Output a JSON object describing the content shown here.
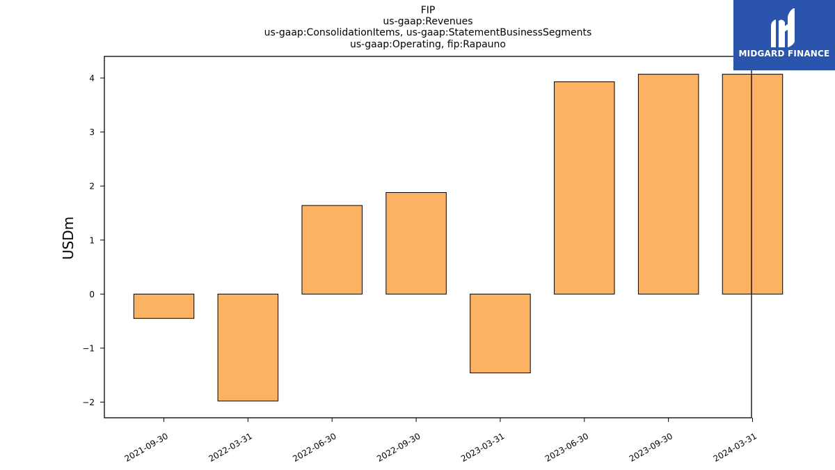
{
  "chart_data": {
    "type": "bar",
    "title_lines": [
      "FIP",
      "us-gaap:Revenues",
      "us-gaap:ConsolidationItems, us-gaap:StatementBusinessSegments",
      "us-gaap:Operating, fip:Rapauno"
    ],
    "ylabel": "USDm",
    "xlabel": "",
    "categories": [
      "2021-09-30",
      "2022-03-31",
      "2022-06-30",
      "2022-09-30",
      "2023-03-31",
      "2023-06-30",
      "2023-09-30",
      "2024-03-31"
    ],
    "values": [
      -0.45,
      -1.98,
      1.64,
      1.88,
      -1.46,
      3.93,
      4.07,
      4.07
    ],
    "ylim": [
      -2.29,
      4.4
    ],
    "yticks": [
      -2,
      -1,
      0,
      1,
      2,
      3,
      4
    ],
    "ytick_labels": [
      "−2",
      "−1",
      "0",
      "1",
      "2",
      "3",
      "4"
    ],
    "grid": false,
    "bar_color": "#fbb363",
    "bar_edge_color": "#000000"
  },
  "logo": {
    "text": "MIDGARD FINANCE",
    "background": "#2b55ad"
  }
}
